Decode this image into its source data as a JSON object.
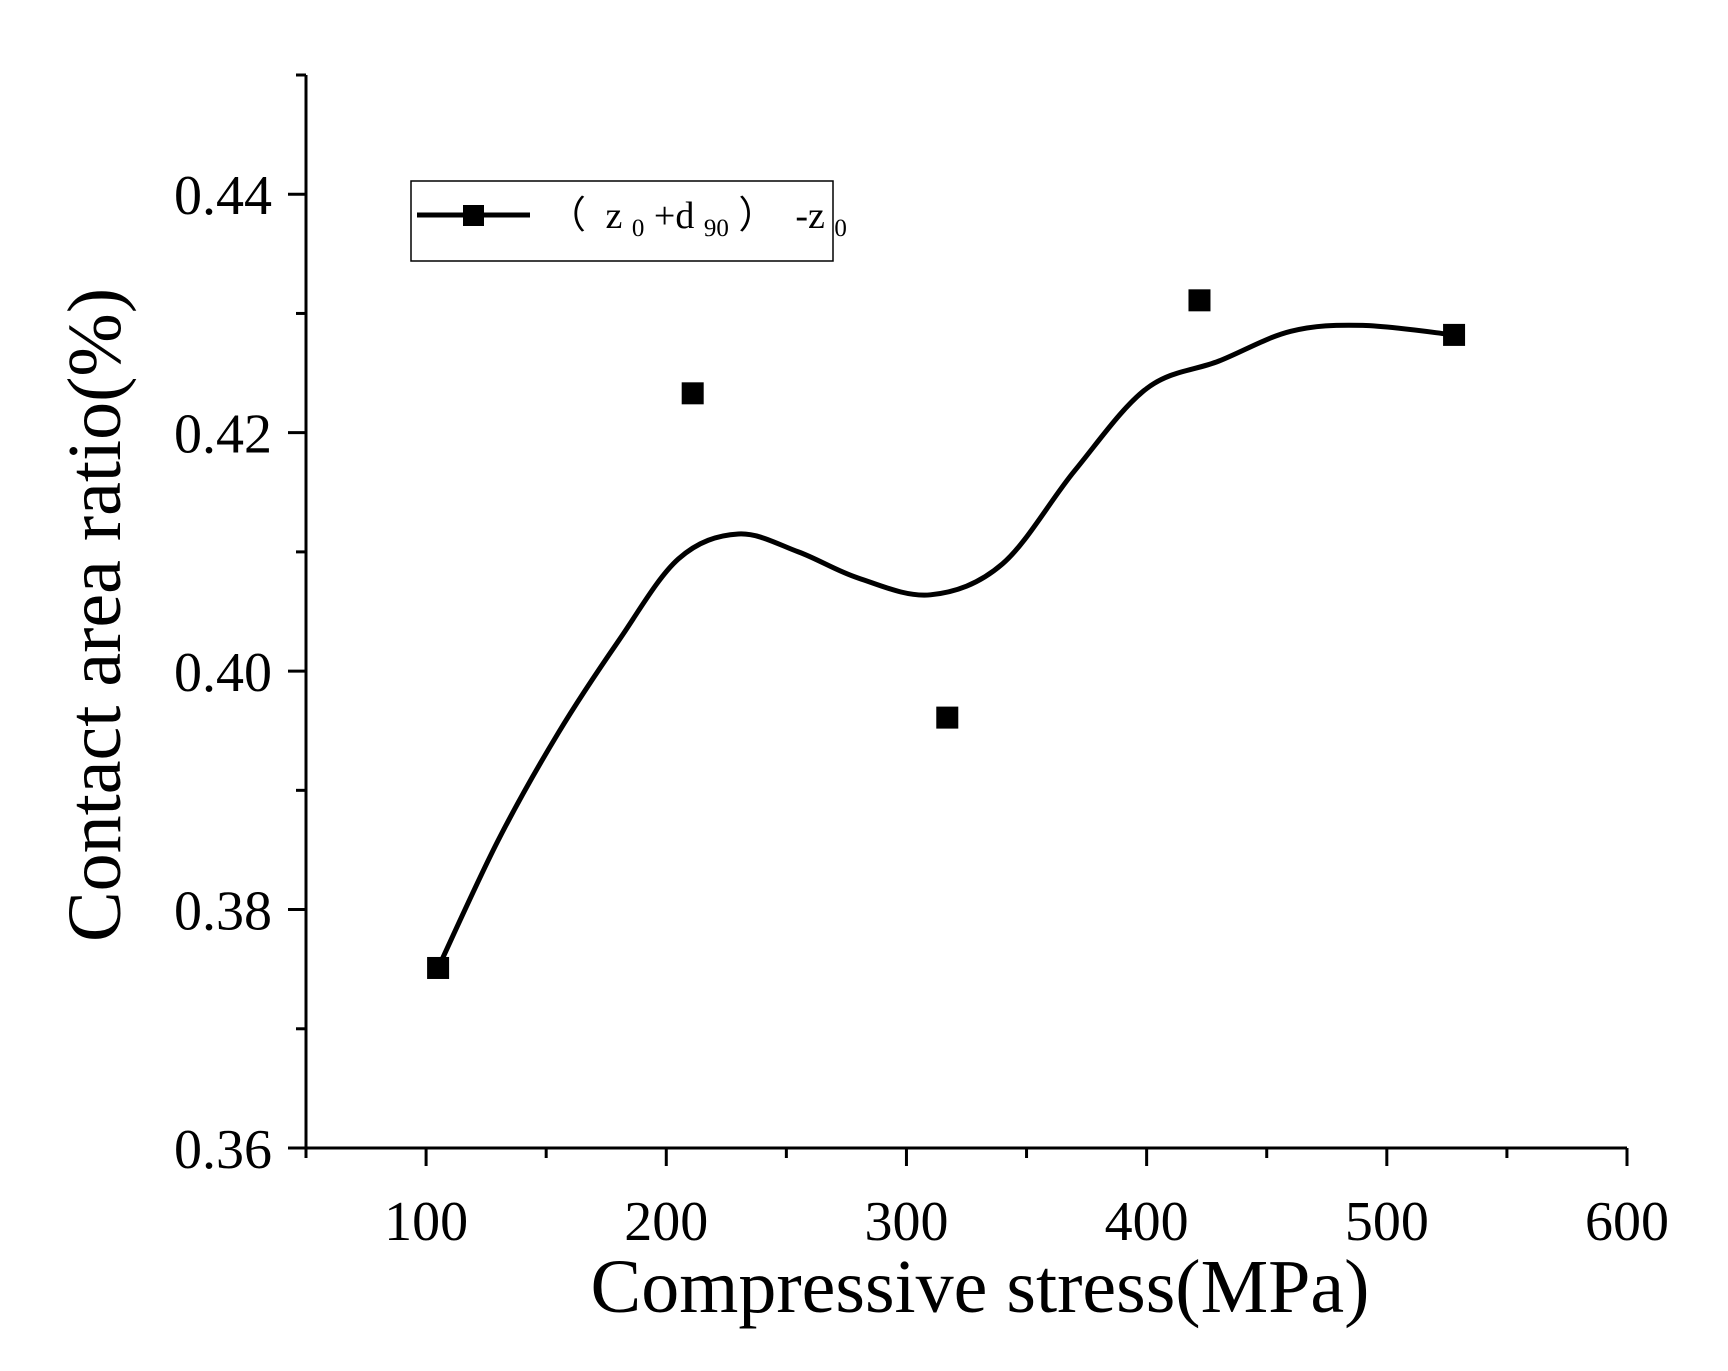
{
  "chart_data": {
    "type": "scatter",
    "title": "",
    "xlabel": "Compressive stress(MPa)",
    "ylabel": "Contact area ratio(%)",
    "xlim": [
      50,
      600
    ],
    "ylim": [
      0.36,
      0.45
    ],
    "x_ticks": [
      100,
      200,
      300,
      400,
      500,
      600
    ],
    "x_tick_labels": [
      "100",
      "200",
      "300",
      "400",
      "500",
      "600"
    ],
    "x_minor_ticks": [
      50,
      150,
      250,
      350,
      450,
      550
    ],
    "y_ticks": [
      0.36,
      0.38,
      0.4,
      0.42,
      0.44
    ],
    "y_tick_labels": [
      "0.36",
      "0.38",
      "0.40",
      "0.42",
      "0.44"
    ],
    "y_minor_ticks": [
      0.37,
      0.39,
      0.41,
      0.43,
      0.45
    ],
    "grid": false,
    "legend_position": "top-left",
    "series": [
      {
        "name": "（ z0+d90） -z0",
        "legend": {
          "lparen": "（",
          "z": "z",
          "sub0": "0",
          "plus_d": "+d",
          "sub90": "90",
          "rparen": "）",
          "minus_z": " -z",
          "sub0b": "0"
        },
        "marker": "square",
        "color": "#000000",
        "x": [
          105,
          211,
          317,
          422,
          528
        ],
        "y": [
          0.3751,
          0.4233,
          0.3961,
          0.4311,
          0.4282
        ],
        "fit_curve": {
          "x": [
            105,
            130,
            155,
            180,
            205,
            230,
            255,
            280,
            310,
            340,
            370,
            400,
            430,
            460,
            490,
            528
          ],
          "y": [
            0.3751,
            0.3858,
            0.3948,
            0.4025,
            0.4094,
            0.4115,
            0.41,
            0.4078,
            0.4064,
            0.409,
            0.4168,
            0.4237,
            0.426,
            0.4285,
            0.429,
            0.4282
          ]
        }
      }
    ]
  }
}
